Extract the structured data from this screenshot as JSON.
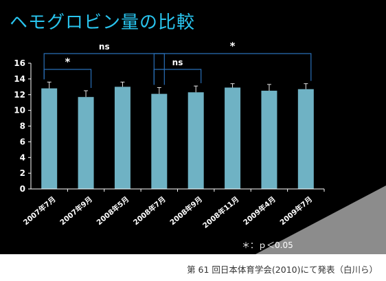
{
  "slide": {
    "title": "ヘモグロビン量の比較",
    "significance_note": "＊：ｐ＜0.05"
  },
  "caption": "第 61 回日本体育学会(2010)にて発表（白川ら）",
  "chart_data": {
    "type": "bar",
    "categories": [
      "2007年7月",
      "2007年9月",
      "2008年5月",
      "2008年7月",
      "2008年9月",
      "2008年11月",
      "2009年4月",
      "2009年7月"
    ],
    "values": [
      12.8,
      11.7,
      13.0,
      12.1,
      12.3,
      12.9,
      12.5,
      12.7
    ],
    "errors": [
      0.8,
      0.8,
      0.6,
      0.8,
      0.8,
      0.5,
      0.8,
      0.7
    ],
    "ylim": [
      0,
      16
    ],
    "yticks": [
      0,
      2,
      4,
      6,
      8,
      10,
      12,
      14,
      16
    ],
    "xlabel": "",
    "ylabel": "",
    "bar_color": "#6fb2c4",
    "annotations": [
      {
        "from": 0,
        "to": 3,
        "label": "ns",
        "level": "top"
      },
      {
        "from": 0,
        "to": 1,
        "label": "*",
        "level": "low"
      },
      {
        "from": 3,
        "to": 7,
        "label": "*",
        "level": "top"
      },
      {
        "from": 3,
        "to": 4,
        "label": "ns",
        "level": "low"
      }
    ]
  },
  "colors": {
    "background": "#000000",
    "title": "#29c4ee",
    "bracket": "#2a70b8",
    "accent_wedge": "#8c8c8c"
  }
}
